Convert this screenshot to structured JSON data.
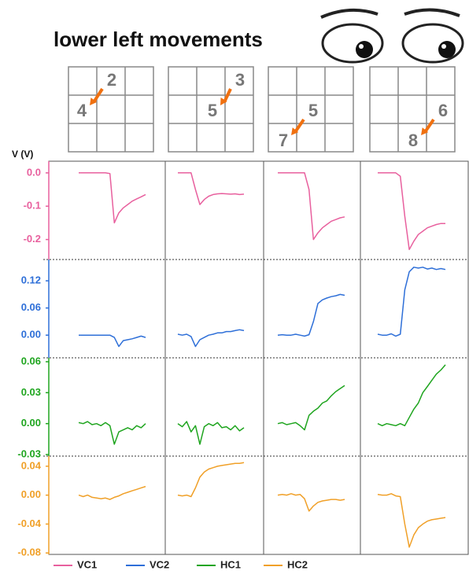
{
  "title": "lower left movements",
  "grids": [
    {
      "from": "2",
      "to": "4"
    },
    {
      "from": "3",
      "to": "5"
    },
    {
      "from": "5",
      "to": "7"
    },
    {
      "from": "6",
      "to": "8"
    }
  ],
  "chart_data": {
    "type": "line",
    "ylabel": "V (V)",
    "series": [
      {
        "name": "VC1",
        "color": "#e8609e",
        "ylim": [
          -0.26,
          0.035
        ],
        "yticks": [
          {
            "value": 0,
            "label": "0.0"
          },
          -0.1,
          -0.2
        ],
        "values": [
          [
            0,
            0,
            0,
            0,
            0,
            0,
            0,
            -0.002,
            -0.15,
            -0.12,
            -0.105,
            -0.095,
            -0.085,
            -0.078,
            -0.072,
            -0.065
          ],
          [
            0,
            0,
            0,
            0,
            -0.05,
            -0.095,
            -0.08,
            -0.07,
            -0.065,
            -0.063,
            -0.062,
            -0.063,
            -0.064,
            -0.063,
            -0.065,
            -0.064
          ],
          [
            0,
            0,
            0,
            0,
            0,
            0,
            0,
            -0.05,
            -0.2,
            -0.18,
            -0.165,
            -0.155,
            -0.145,
            -0.14,
            -0.135,
            -0.132
          ],
          [
            0,
            0,
            0,
            0,
            0,
            -0.01,
            -0.13,
            -0.23,
            -0.205,
            -0.185,
            -0.175,
            -0.165,
            -0.16,
            -0.155,
            -0.152,
            -0.152
          ]
        ]
      },
      {
        "name": "VC2",
        "color": "#2e6fd8",
        "ylim": [
          -0.05,
          0.167
        ],
        "yticks": [
          0.12,
          0.06,
          {
            "value": 0,
            "label": "0.00"
          }
        ],
        "values": [
          [
            0,
            0,
            0,
            0,
            0,
            0,
            0,
            0,
            -0.005,
            -0.025,
            -0.012,
            -0.01,
            -0.008,
            -0.005,
            -0.002,
            -0.005
          ],
          [
            0.002,
            0,
            0.002,
            -0.003,
            -0.025,
            -0.01,
            -0.005,
            0,
            0.002,
            0.005,
            0.005,
            0.008,
            0.008,
            0.01,
            0.012,
            0.01
          ],
          [
            0,
            0.001,
            0,
            0,
            0.002,
            0,
            -0.002,
            0.001,
            0.03,
            0.07,
            0.078,
            0.082,
            0.085,
            0.087,
            0.09,
            0.088
          ],
          [
            0.002,
            0,
            0,
            0.003,
            -0.002,
            0.002,
            0.1,
            0.14,
            0.15,
            0.148,
            0.15,
            0.146,
            0.148,
            0.145,
            0.147,
            0.145
          ]
        ]
      },
      {
        "name": "HC1",
        "color": "#1fa51f",
        "ylim": [
          -0.0315,
          0.0638
        ],
        "yticks": [
          0.06,
          0.03,
          {
            "value": 0,
            "label": "0.00"
          },
          -0.03
        ],
        "values": [
          [
            0.001,
            0,
            0.002,
            -0.001,
            0,
            -0.002,
            0.001,
            -0.002,
            -0.02,
            -0.008,
            -0.006,
            -0.004,
            -0.006,
            -0.002,
            -0.004,
            0
          ],
          [
            0,
            -0.003,
            0.002,
            -0.008,
            -0.002,
            -0.02,
            -0.003,
            0,
            -0.002,
            0.001,
            -0.004,
            -0.003,
            -0.006,
            -0.002,
            -0.007,
            -0.004
          ],
          [
            0,
            0.001,
            -0.001,
            0,
            0.001,
            -0.002,
            -0.006,
            0.008,
            0.012,
            0.015,
            0.02,
            0.022,
            0.027,
            0.031,
            0.034,
            0.037
          ],
          [
            0,
            -0.002,
            0,
            -0.001,
            -0.002,
            0,
            -0.002,
            0.006,
            0.014,
            0.02,
            0.03,
            0.036,
            0.042,
            0.048,
            0.052,
            0.057
          ]
        ]
      },
      {
        "name": "HC2",
        "color": "#f0a028",
        "ylim": [
          -0.082,
          0.054
        ],
        "yticks": [
          0.04,
          {
            "value": 0,
            "label": "0.00"
          },
          -0.04,
          -0.08
        ],
        "values": [
          [
            0,
            -0.002,
            0,
            -0.003,
            -0.004,
            -0.005,
            -0.004,
            -0.006,
            -0.003,
            -0.001,
            0.002,
            0.004,
            0.006,
            0.008,
            0.01,
            0.012
          ],
          [
            0,
            -0.001,
            0,
            -0.002,
            0.01,
            0.025,
            0.032,
            0.036,
            0.038,
            0.04,
            0.041,
            0.042,
            0.043,
            0.044,
            0.044,
            0.045
          ],
          [
            0,
            0.001,
            0,
            0.002,
            0,
            0.001,
            -0.005,
            -0.022,
            -0.015,
            -0.01,
            -0.008,
            -0.007,
            -0.006,
            -0.006,
            -0.007,
            -0.006
          ],
          [
            0.001,
            0,
            0,
            0.002,
            -0.001,
            -0.002,
            -0.04,
            -0.072,
            -0.055,
            -0.045,
            -0.04,
            -0.036,
            -0.034,
            -0.033,
            -0.032,
            -0.031
          ]
        ]
      }
    ]
  }
}
